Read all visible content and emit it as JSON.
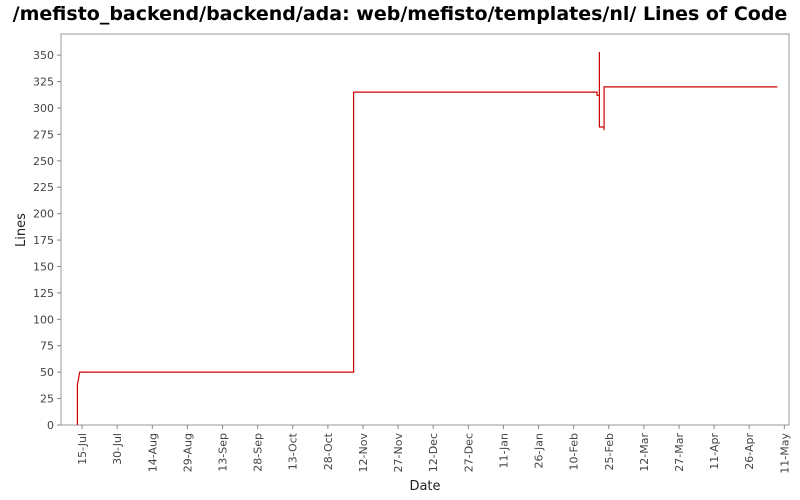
{
  "chart_data": {
    "type": "line",
    "title": "/mefisto_backend/backend/ada: web/mefisto/templates/nl/ Lines of Code",
    "xlabel": "Date",
    "ylabel": "Lines",
    "ylim": [
      0,
      370
    ],
    "yticks": [
      0,
      25,
      50,
      75,
      100,
      125,
      150,
      175,
      200,
      225,
      250,
      275,
      300,
      325,
      350
    ],
    "xlim": [
      "2006-07-06",
      "2007-05-13"
    ],
    "xticks": [
      {
        "date": "2006-07-15",
        "label": "15-Jul"
      },
      {
        "date": "2006-07-30",
        "label": "30-Jul"
      },
      {
        "date": "2006-08-14",
        "label": "14-Aug"
      },
      {
        "date": "2006-08-29",
        "label": "29-Aug"
      },
      {
        "date": "2006-09-13",
        "label": "13-Sep"
      },
      {
        "date": "2006-09-28",
        "label": "28-Sep"
      },
      {
        "date": "2006-10-13",
        "label": "13-Oct"
      },
      {
        "date": "2006-10-28",
        "label": "28-Oct"
      },
      {
        "date": "2006-11-12",
        "label": "12-Nov"
      },
      {
        "date": "2006-11-27",
        "label": "27-Nov"
      },
      {
        "date": "2006-12-12",
        "label": "12-Dec"
      },
      {
        "date": "2006-12-27",
        "label": "27-Dec"
      },
      {
        "date": "2007-01-11",
        "label": "11-Jan"
      },
      {
        "date": "2007-01-26",
        "label": "26-Jan"
      },
      {
        "date": "2007-02-10",
        "label": "10-Feb"
      },
      {
        "date": "2007-02-25",
        "label": "25-Feb"
      },
      {
        "date": "2007-03-12",
        "label": "12-Mar"
      },
      {
        "date": "2007-03-27",
        "label": "27-Mar"
      },
      {
        "date": "2007-04-11",
        "label": "11-Apr"
      },
      {
        "date": "2007-04-26",
        "label": "26-Apr"
      },
      {
        "date": "2007-05-11",
        "label": "11-May"
      }
    ],
    "grid": false,
    "series": [
      {
        "color": "#cc0000",
        "step": true,
        "points": [
          {
            "date": "2006-07-13",
            "y": 0
          },
          {
            "date": "2006-07-13",
            "y": 38
          },
          {
            "date": "2006-07-14",
            "y": 50
          },
          {
            "date": "2006-11-08",
            "y": 50
          },
          {
            "date": "2006-11-08",
            "y": 315
          },
          {
            "date": "2007-02-20",
            "y": 315
          },
          {
            "date": "2007-02-20",
            "y": 312
          },
          {
            "date": "2007-02-21",
            "y": 312
          },
          {
            "date": "2007-02-21",
            "y": 353
          },
          {
            "date": "2007-02-21",
            "y": 282
          },
          {
            "date": "2007-02-23",
            "y": 282
          },
          {
            "date": "2007-02-23",
            "y": 279
          },
          {
            "date": "2007-02-23",
            "y": 320
          },
          {
            "date": "2007-05-08",
            "y": 320
          }
        ]
      }
    ]
  }
}
